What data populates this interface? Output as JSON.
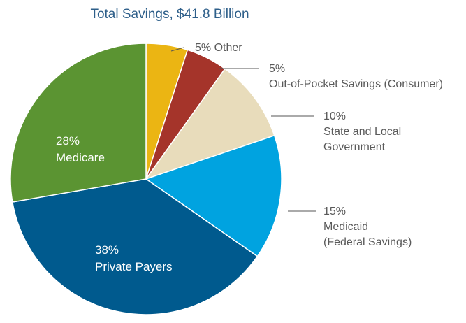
{
  "chart_data": {
    "type": "pie",
    "title": "Total Savings, $41.8 Billion",
    "start_angle_deg": 0,
    "direction": "clockwise",
    "slices": [
      {
        "id": "other",
        "value": 5,
        "color": "#ebb513",
        "label_lines": [
          "5% Other"
        ],
        "label_style": "outside"
      },
      {
        "id": "oop",
        "value": 5,
        "color": "#a5342a",
        "label_lines": [
          "5%",
          "Out-of-Pocket Savings (Consumer)"
        ],
        "label_style": "outside"
      },
      {
        "id": "state",
        "value": 10,
        "color": "#e8dcbb",
        "label_lines": [
          "10%",
          "State and Local",
          "Government"
        ],
        "label_style": "outside"
      },
      {
        "id": "medicaid",
        "value": 15,
        "color": "#00a3e0",
        "label_lines": [
          "15%",
          "Medicaid",
          "(Federal Savings)"
        ],
        "label_style": "outside"
      },
      {
        "id": "private",
        "value": 38,
        "color": "#005a8e",
        "label_lines": [
          "38%",
          "Private Payers"
        ],
        "label_style": "inside"
      },
      {
        "id": "medicare",
        "value": 28,
        "color": "#5b9432",
        "label_lines": [
          "28%",
          "Medicare"
        ],
        "label_style": "inside"
      }
    ],
    "legend": "none"
  }
}
